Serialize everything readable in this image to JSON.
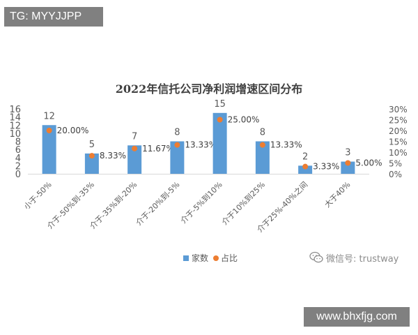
{
  "header_badge": "TG: MYYJJPP",
  "footer_badge": "www.bhxfjg.com",
  "watermark": {
    "text": "微信号: trustway",
    "icon": "wechat-icon"
  },
  "colors": {
    "bar": "#5b9bd5",
    "dot": "#ed7d31",
    "axis_text": "#595959",
    "title": "#404040",
    "badge_bg": "#808080"
  },
  "chart_data": {
    "type": "bar",
    "title": "2022年信托公司净利润增速区间分布",
    "categories": [
      "小于-50%",
      "介于-50%到-35%",
      "介于-35%到-20%",
      "介于-20%到-5%",
      "介于-5%到10%",
      "介于10%到25%",
      "介于25%-40%之间",
      "大于40%"
    ],
    "series": [
      {
        "name": "家数",
        "kind": "bar",
        "axis": "left",
        "values": [
          12,
          5,
          7,
          8,
          15,
          8,
          2,
          3
        ],
        "labels": [
          "12",
          "5",
          "7",
          "8",
          "15",
          "8",
          "2",
          "3"
        ]
      },
      {
        "name": "占比",
        "kind": "marker",
        "axis": "right",
        "values": [
          20.0,
          8.33,
          11.67,
          13.33,
          25.0,
          13.33,
          3.33,
          5.0
        ],
        "labels": [
          "20.00%",
          "8.33%",
          "11.67%",
          "13.33%",
          "25.00%",
          "13.33%",
          "3.33%",
          "5.00%"
        ]
      }
    ],
    "y_left": {
      "ylim": [
        0,
        16
      ],
      "ticks": [
        "0",
        "2",
        "4",
        "6",
        "8",
        "10",
        "12",
        "14",
        "16"
      ]
    },
    "y_right": {
      "ylim": [
        0,
        30
      ],
      "ticks": [
        "0%",
        "5%",
        "10%",
        "15%",
        "20%",
        "25%",
        "30%"
      ]
    },
    "grid": false,
    "legend": "bottom"
  }
}
